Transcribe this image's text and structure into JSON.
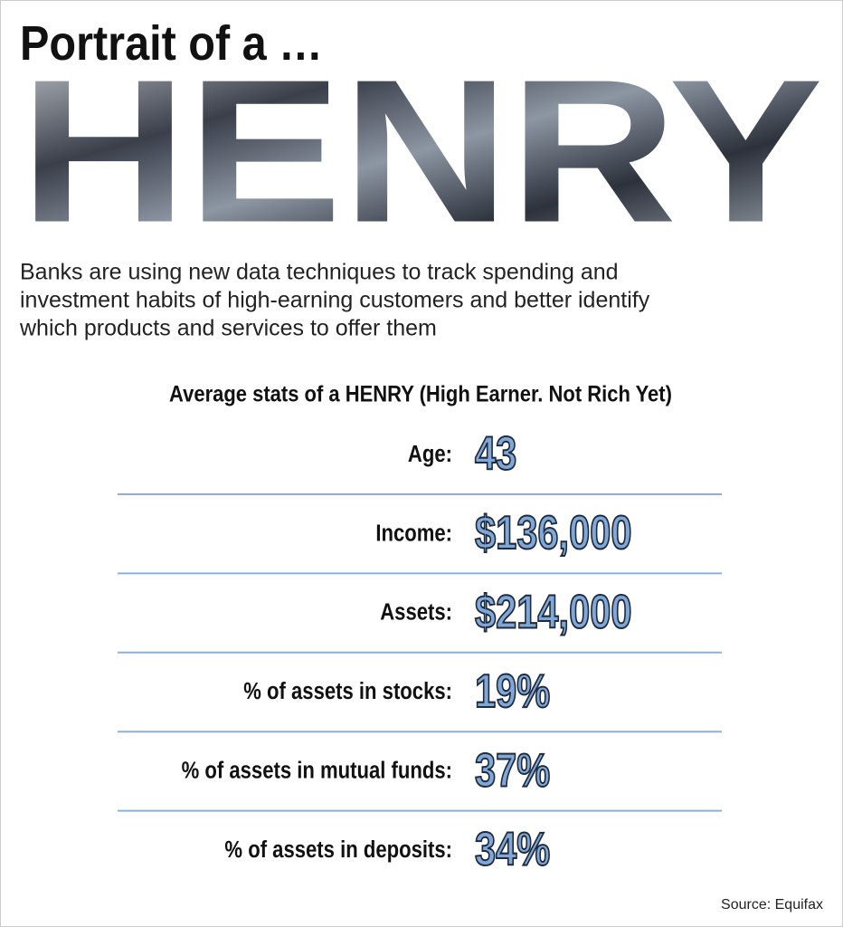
{
  "header": {
    "title": "Portrait of a …",
    "banner": "HENRY"
  },
  "description": [
    "Banks are using new data techniques to track spending and",
    "investment habits of high-earning customers and better identify",
    "which products and services to offer them"
  ],
  "stats": {
    "title": "Average stats of a HENRY (High Earner. Not Rich Yet)",
    "rows": [
      {
        "label": "Age:",
        "value": "43"
      },
      {
        "label": "Income:",
        "value": "$136,000"
      },
      {
        "label": "Assets:",
        "value": "$214,000"
      },
      {
        "label": "% of assets in stocks:",
        "value": "19%"
      },
      {
        "label": "% of assets in mutual funds:",
        "value": "37%"
      },
      {
        "label": "% of assets in deposits:",
        "value": "34%"
      }
    ]
  },
  "source": "Source: Equifax"
}
